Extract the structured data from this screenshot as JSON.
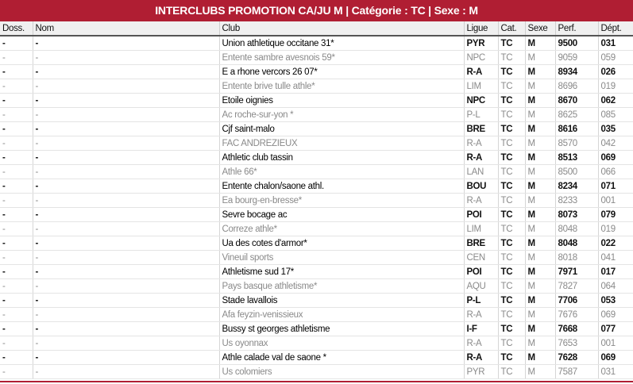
{
  "title": "INTERCLUBS PROMOTION CA/JU M | Catégorie : TC | Sexe : M",
  "columns": [
    "Doss.",
    "Nom",
    "Club",
    "Ligue",
    "Cat.",
    "Sexe",
    "Perf.",
    "Dépt."
  ],
  "rows": [
    {
      "doss": "-",
      "nom": "-",
      "club": "Union athletique occitane 31*",
      "ligue": "PYR",
      "cat": "TC",
      "sexe": "M",
      "perf": "9500",
      "dept": "031"
    },
    {
      "doss": "-",
      "nom": "-",
      "club": "Entente sambre avesnois 59*",
      "ligue": "NPC",
      "cat": "TC",
      "sexe": "M",
      "perf": "9059",
      "dept": "059"
    },
    {
      "doss": "-",
      "nom": "-",
      "club": "E a rhone vercors 26 07*",
      "ligue": "R-A",
      "cat": "TC",
      "sexe": "M",
      "perf": "8934",
      "dept": "026"
    },
    {
      "doss": "-",
      "nom": "-",
      "club": "Entente brive tulle athle*",
      "ligue": "LIM",
      "cat": "TC",
      "sexe": "M",
      "perf": "8696",
      "dept": "019"
    },
    {
      "doss": "-",
      "nom": "-",
      "club": "Etoile oignies",
      "ligue": "NPC",
      "cat": "TC",
      "sexe": "M",
      "perf": "8670",
      "dept": "062"
    },
    {
      "doss": "-",
      "nom": "-",
      "club": "Ac roche-sur-yon *",
      "ligue": "P-L",
      "cat": "TC",
      "sexe": "M",
      "perf": "8625",
      "dept": "085"
    },
    {
      "doss": "-",
      "nom": "-",
      "club": "Cjf saint-malo",
      "ligue": "BRE",
      "cat": "TC",
      "sexe": "M",
      "perf": "8616",
      "dept": "035"
    },
    {
      "doss": "-",
      "nom": "-",
      "club": "FAC ANDREZIEUX",
      "ligue": "R-A",
      "cat": "TC",
      "sexe": "M",
      "perf": "8570",
      "dept": "042"
    },
    {
      "doss": "-",
      "nom": "-",
      "club": "Athletic club tassin",
      "ligue": "R-A",
      "cat": "TC",
      "sexe": "M",
      "perf": "8513",
      "dept": "069"
    },
    {
      "doss": "-",
      "nom": "-",
      "club": "Athle 66*",
      "ligue": "LAN",
      "cat": "TC",
      "sexe": "M",
      "perf": "8500",
      "dept": "066"
    },
    {
      "doss": "-",
      "nom": "-",
      "club": "Entente chalon/saone athl.",
      "ligue": "BOU",
      "cat": "TC",
      "sexe": "M",
      "perf": "8234",
      "dept": "071"
    },
    {
      "doss": "-",
      "nom": "-",
      "club": "Ea bourg-en-bresse*",
      "ligue": "R-A",
      "cat": "TC",
      "sexe": "M",
      "perf": "8233",
      "dept": "001"
    },
    {
      "doss": "-",
      "nom": "-",
      "club": "Sevre bocage ac",
      "ligue": "POI",
      "cat": "TC",
      "sexe": "M",
      "perf": "8073",
      "dept": "079"
    },
    {
      "doss": "-",
      "nom": "-",
      "club": "Correze athle*",
      "ligue": "LIM",
      "cat": "TC",
      "sexe": "M",
      "perf": "8048",
      "dept": "019"
    },
    {
      "doss": "-",
      "nom": "-",
      "club": "Ua des cotes d'armor*",
      "ligue": "BRE",
      "cat": "TC",
      "sexe": "M",
      "perf": "8048",
      "dept": "022"
    },
    {
      "doss": "-",
      "nom": "-",
      "club": "Vineuil sports",
      "ligue": "CEN",
      "cat": "TC",
      "sexe": "M",
      "perf": "8018",
      "dept": "041"
    },
    {
      "doss": "-",
      "nom": "-",
      "club": "Athletisme sud 17*",
      "ligue": "POI",
      "cat": "TC",
      "sexe": "M",
      "perf": "7971",
      "dept": "017"
    },
    {
      "doss": "-",
      "nom": "-",
      "club": "Pays basque athletisme*",
      "ligue": "AQU",
      "cat": "TC",
      "sexe": "M",
      "perf": "7827",
      "dept": "064"
    },
    {
      "doss": "-",
      "nom": "-",
      "club": "Stade lavallois",
      "ligue": "P-L",
      "cat": "TC",
      "sexe": "M",
      "perf": "7706",
      "dept": "053"
    },
    {
      "doss": "-",
      "nom": "-",
      "club": "Afa feyzin-venissieux",
      "ligue": "R-A",
      "cat": "TC",
      "sexe": "M",
      "perf": "7676",
      "dept": "069"
    },
    {
      "doss": "-",
      "nom": "-",
      "club": "Bussy st georges athletisme",
      "ligue": "I-F",
      "cat": "TC",
      "sexe": "M",
      "perf": "7668",
      "dept": "077"
    },
    {
      "doss": "-",
      "nom": "-",
      "club": "Us oyonnax",
      "ligue": "R-A",
      "cat": "TC",
      "sexe": "M",
      "perf": "7653",
      "dept": "001"
    },
    {
      "doss": "-",
      "nom": "-",
      "club": "Athle calade val de saone *",
      "ligue": "R-A",
      "cat": "TC",
      "sexe": "M",
      "perf": "7628",
      "dept": "069"
    },
    {
      "doss": "-",
      "nom": "-",
      "club": "Us colomiers",
      "ligue": "PYR",
      "cat": "TC",
      "sexe": "M",
      "perf": "7587",
      "dept": "031"
    }
  ],
  "colors": {
    "accent": "#b01e33"
  }
}
